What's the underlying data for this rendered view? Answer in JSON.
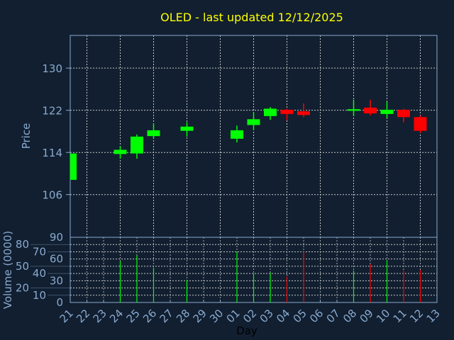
{
  "chart_data": {
    "type": "candlestick",
    "title": "OLED - last updated 12/12/2025",
    "price_panel": {
      "ylabel": "Price",
      "yticks": [
        106,
        114,
        122,
        130
      ],
      "ylim": [
        97.9,
        136.2
      ]
    },
    "volume_panel": {
      "ylabel": "Volume (0000)",
      "yticks": [
        0,
        10,
        20,
        30,
        40,
        50,
        60,
        70,
        80,
        90
      ],
      "ylim": [
        0,
        90
      ]
    },
    "xlabel": "Day",
    "xticks": [
      "21",
      "22",
      "23",
      "24",
      "25",
      "26",
      "27",
      "28",
      "29",
      "30",
      "01",
      "02",
      "03",
      "04",
      "05",
      "06",
      "07",
      "08",
      "09",
      "10",
      "11",
      "12",
      "13"
    ],
    "candles": [
      {
        "day": "21",
        "open": 108.8,
        "high": 113.8,
        "low": 108.8,
        "close": 113.8,
        "volume": 0
      },
      {
        "day": "24",
        "open": 113.7,
        "high": 115.2,
        "low": 112.8,
        "close": 114.5,
        "volume": 57
      },
      {
        "day": "25",
        "open": 113.8,
        "high": 117.4,
        "low": 112.8,
        "close": 117.0,
        "volume": 65
      },
      {
        "day": "26",
        "open": 117.1,
        "high": 119.5,
        "low": 116.6,
        "close": 118.2,
        "volume": 48
      },
      {
        "day": "28",
        "open": 118.1,
        "high": 119.7,
        "low": 117.0,
        "close": 118.9,
        "volume": 31
      },
      {
        "day": "01",
        "open": 116.6,
        "high": 119.1,
        "low": 115.9,
        "close": 118.2,
        "volume": 70
      },
      {
        "day": "02",
        "open": 119.2,
        "high": 121.7,
        "low": 118.2,
        "close": 120.3,
        "volume": 40
      },
      {
        "day": "03",
        "open": 120.9,
        "high": 122.6,
        "low": 120.2,
        "close": 122.3,
        "volume": 41
      },
      {
        "day": "04",
        "open": 122.1,
        "high": 122.3,
        "low": 120.1,
        "close": 121.3,
        "volume": 36
      },
      {
        "day": "05",
        "open": 121.8,
        "high": 123.3,
        "low": 120.7,
        "close": 121.1,
        "volume": 70
      },
      {
        "day": "08",
        "open": 121.9,
        "high": 124.0,
        "low": 120.9,
        "close": 122.2,
        "volume": 44
      },
      {
        "day": "09",
        "open": 122.5,
        "high": 124.0,
        "low": 121.0,
        "close": 121.4,
        "volume": 53
      },
      {
        "day": "10",
        "open": 121.3,
        "high": 123.6,
        "low": 120.5,
        "close": 122.1,
        "volume": 58
      },
      {
        "day": "11",
        "open": 122.1,
        "high": 122.3,
        "low": 119.7,
        "close": 120.7,
        "volume": 44
      },
      {
        "day": "12",
        "open": 120.7,
        "high": 121.0,
        "low": 117.7,
        "close": 118.1,
        "volume": 45
      }
    ],
    "colors": {
      "up": "#00ff00",
      "down": "#ff0000",
      "title": "#ffff00",
      "axis": "#8aaad0",
      "grid": "#c8c8c8",
      "background": "#111f30"
    }
  }
}
